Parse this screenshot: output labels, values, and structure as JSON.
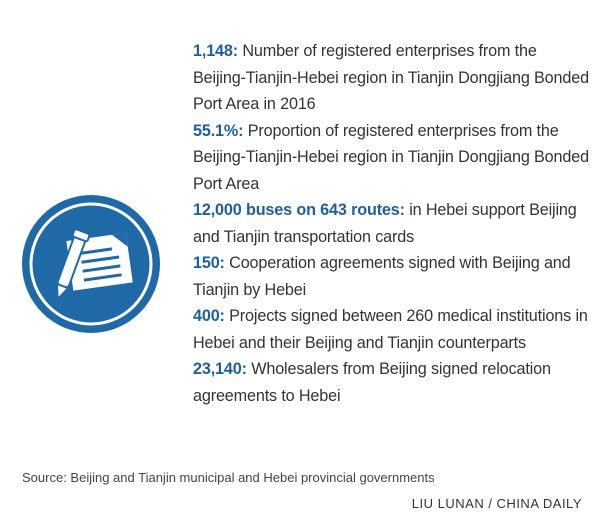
{
  "colors": {
    "accent": "#1f5fa0",
    "icon_bg": "#1f6aa6",
    "text": "#333333"
  },
  "icon": {
    "name": "contract-pen-icon"
  },
  "facts": [
    {
      "number": "1,148:",
      "text": " Number of registered enterprises from the Beijing-Tianjin-Hebei region in Tianjin Dongjiang Bonded Port Area in 2016"
    },
    {
      "number": "55.1%:",
      "text": " Proportion of registered enterprises from the Beijing-Tianjin-Hebei region in Tianjin Dongjiang Bonded Port Area"
    },
    {
      "number": "12,000 buses on 643 routes:",
      "text": " in Hebei support Beijing and Tianjin transportation cards"
    },
    {
      "number": "150:",
      "text": " Cooperation agreements signed with Beijing and Tianjin by Hebei"
    },
    {
      "number": "400:",
      "text": " Projects signed between 260 medical institutions in Hebei and their Beijing and Tianjin counterparts"
    },
    {
      "number": "23,140:",
      "text": " Wholesalers from Beijing signed relocation agreements to Hebei"
    }
  ],
  "source": "Source: Beijing and Tianjin municipal and Hebei provincial governments",
  "credit": "LIU LUNAN / CHINA DAILY"
}
